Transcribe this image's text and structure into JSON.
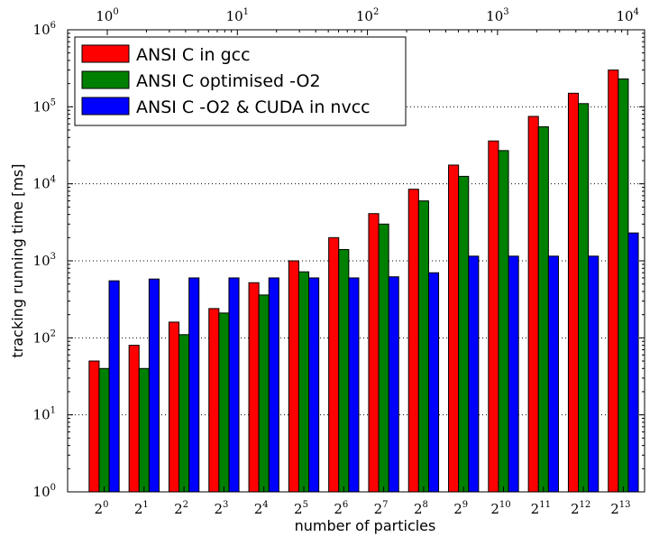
{
  "chart_data": {
    "type": "bar",
    "xlabel": "number of particles",
    "ylabel": "tracking running time [ms]",
    "yscale": "log",
    "ylim": [
      1,
      1000000
    ],
    "categories": [
      "2^0",
      "2^1",
      "2^2",
      "2^3",
      "2^4",
      "2^5",
      "2^6",
      "2^7",
      "2^8",
      "2^9",
      "2^10",
      "2^11",
      "2^12",
      "2^13"
    ],
    "x_tick_bases": [
      "2",
      "2",
      "2",
      "2",
      "2",
      "2",
      "2",
      "2",
      "2",
      "2",
      "2",
      "2",
      "2",
      "2"
    ],
    "x_tick_exps": [
      "0",
      "1",
      "2",
      "3",
      "4",
      "5",
      "6",
      "7",
      "8",
      "9",
      "10",
      "11",
      "12",
      "13"
    ],
    "top_axis": {
      "scale": "log",
      "ticks": [
        {
          "base": "10",
          "exp": "0"
        },
        {
          "base": "10",
          "exp": "1"
        },
        {
          "base": "10",
          "exp": "2"
        },
        {
          "base": "10",
          "exp": "3"
        },
        {
          "base": "10",
          "exp": "4"
        }
      ]
    },
    "y_ticks": [
      {
        "base": "10",
        "exp": "0"
      },
      {
        "base": "10",
        "exp": "1"
      },
      {
        "base": "10",
        "exp": "2"
      },
      {
        "base": "10",
        "exp": "3"
      },
      {
        "base": "10",
        "exp": "4"
      },
      {
        "base": "10",
        "exp": "5"
      },
      {
        "base": "10",
        "exp": "6"
      }
    ],
    "grid": "horizontal dotted",
    "legend_position": "top-left",
    "series": [
      {
        "name": "ANSI C in gcc",
        "color": "#ff0000",
        "values": [
          50,
          80,
          160,
          240,
          520,
          1000,
          2000,
          4100,
          8500,
          17500,
          36000,
          75000,
          150000,
          300000
        ]
      },
      {
        "name": "ANSI C optimised -O2",
        "color": "#008000",
        "values": [
          40,
          40,
          110,
          210,
          360,
          720,
          1400,
          3000,
          6000,
          12500,
          27000,
          55000,
          110000,
          230000
        ]
      },
      {
        "name": "ANSI C -O2 & CUDA in nvcc",
        "color": "#0000ff",
        "values": [
          550,
          580,
          600,
          600,
          600,
          600,
          600,
          620,
          700,
          1150,
          1150,
          1150,
          1150,
          2300
        ]
      }
    ]
  }
}
